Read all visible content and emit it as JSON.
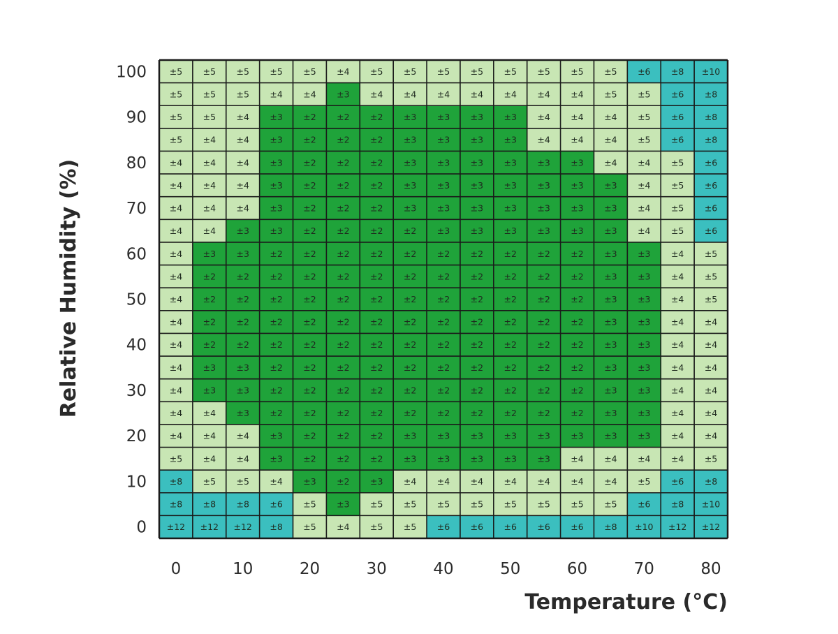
{
  "chart_data": {
    "type": "heatmap",
    "title": "",
    "xlabel": "Temperature (°C)",
    "ylabel": "Relative Humidity (%)",
    "x_ticks": [
      "0",
      "10",
      "20",
      "30",
      "40",
      "50",
      "60",
      "70",
      "80"
    ],
    "y_ticks": [
      "100",
      "90",
      "80",
      "70",
      "60",
      "50",
      "40",
      "30",
      "20",
      "10",
      "0"
    ],
    "x_range": [
      0,
      80
    ],
    "y_range": [
      0,
      100
    ],
    "cell_prefix": "±",
    "colors": {
      "2": "#1fa33a",
      "3": "#1fa33a",
      "4": "#c8e6b4",
      "5": "#c8e6b4",
      "6": "#3bbfbf",
      "8": "#3bbfbf",
      "10": "#3bbfbf",
      "12": "#3bbfbf"
    },
    "grid_color": "#1a1a1a",
    "rows": [
      [
        5,
        5,
        5,
        5,
        5,
        4,
        5,
        5,
        5,
        5,
        5,
        5,
        5,
        5,
        6,
        8,
        10
      ],
      [
        5,
        5,
        5,
        4,
        4,
        3,
        4,
        4,
        4,
        4,
        4,
        4,
        4,
        5,
        5,
        6,
        8
      ],
      [
        5,
        5,
        4,
        3,
        2,
        2,
        2,
        3,
        3,
        3,
        3,
        4,
        4,
        4,
        5,
        6,
        8
      ],
      [
        5,
        4,
        4,
        3,
        2,
        2,
        2,
        3,
        3,
        3,
        3,
        4,
        4,
        4,
        5,
        6,
        8
      ],
      [
        4,
        4,
        4,
        3,
        2,
        2,
        2,
        3,
        3,
        3,
        3,
        3,
        3,
        4,
        4,
        5,
        6
      ],
      [
        4,
        4,
        4,
        3,
        2,
        2,
        2,
        3,
        3,
        3,
        3,
        3,
        3,
        3,
        4,
        5,
        6
      ],
      [
        4,
        4,
        4,
        3,
        2,
        2,
        2,
        3,
        3,
        3,
        3,
        3,
        3,
        3,
        4,
        5,
        6
      ],
      [
        4,
        4,
        3,
        3,
        2,
        2,
        2,
        2,
        3,
        3,
        3,
        3,
        3,
        3,
        4,
        5,
        6
      ],
      [
        4,
        3,
        3,
        2,
        2,
        2,
        2,
        2,
        2,
        2,
        2,
        2,
        2,
        3,
        3,
        4,
        5
      ],
      [
        4,
        2,
        2,
        2,
        2,
        2,
        2,
        2,
        2,
        2,
        2,
        2,
        2,
        3,
        3,
        4,
        5
      ],
      [
        4,
        2,
        2,
        2,
        2,
        2,
        2,
        2,
        2,
        2,
        2,
        2,
        2,
        3,
        3,
        4,
        5
      ],
      [
        4,
        2,
        2,
        2,
        2,
        2,
        2,
        2,
        2,
        2,
        2,
        2,
        2,
        3,
        3,
        4,
        4
      ],
      [
        4,
        2,
        2,
        2,
        2,
        2,
        2,
        2,
        2,
        2,
        2,
        2,
        2,
        3,
        3,
        4,
        4
      ],
      [
        4,
        3,
        3,
        2,
        2,
        2,
        2,
        2,
        2,
        2,
        2,
        2,
        2,
        3,
        3,
        4,
        4
      ],
      [
        4,
        3,
        3,
        2,
        2,
        2,
        2,
        2,
        2,
        2,
        2,
        2,
        2,
        3,
        3,
        4,
        4
      ],
      [
        4,
        4,
        3,
        2,
        2,
        2,
        2,
        2,
        2,
        2,
        2,
        2,
        2,
        3,
        3,
        4,
        4
      ],
      [
        4,
        4,
        4,
        3,
        2,
        2,
        2,
        3,
        3,
        3,
        3,
        3,
        3,
        3,
        3,
        4,
        4
      ],
      [
        5,
        4,
        4,
        3,
        2,
        2,
        2,
        3,
        3,
        3,
        3,
        3,
        4,
        4,
        4,
        4,
        5
      ],
      [
        8,
        5,
        5,
        4,
        3,
        2,
        3,
        4,
        4,
        4,
        4,
        4,
        4,
        4,
        5,
        6,
        8
      ],
      [
        8,
        8,
        8,
        6,
        5,
        3,
        5,
        5,
        5,
        5,
        5,
        5,
        5,
        5,
        6,
        8,
        10
      ],
      [
        12,
        12,
        12,
        8,
        5,
        4,
        5,
        5,
        6,
        6,
        6,
        6,
        6,
        8,
        10,
        12,
        12
      ]
    ]
  }
}
